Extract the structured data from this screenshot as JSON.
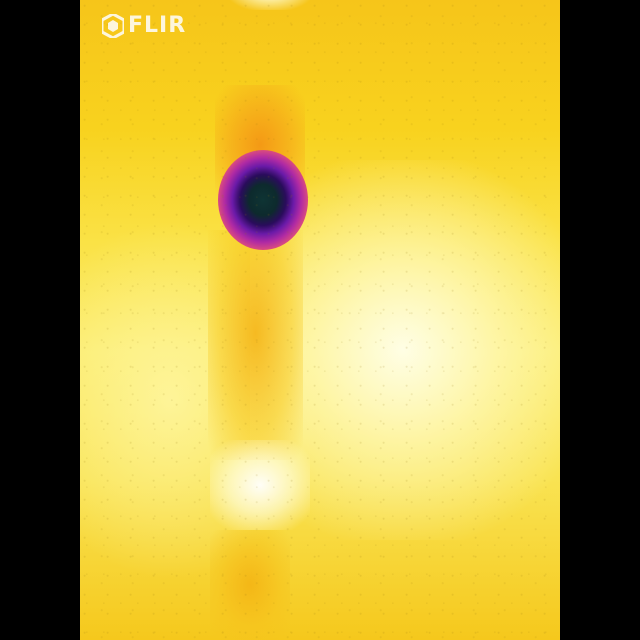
{
  "brand": {
    "logo_text": "FLIR",
    "logo_color": "#ffffff"
  },
  "image": {
    "kind": "thermal camera image",
    "palette": "iron",
    "letterbox_color": "#000000"
  }
}
